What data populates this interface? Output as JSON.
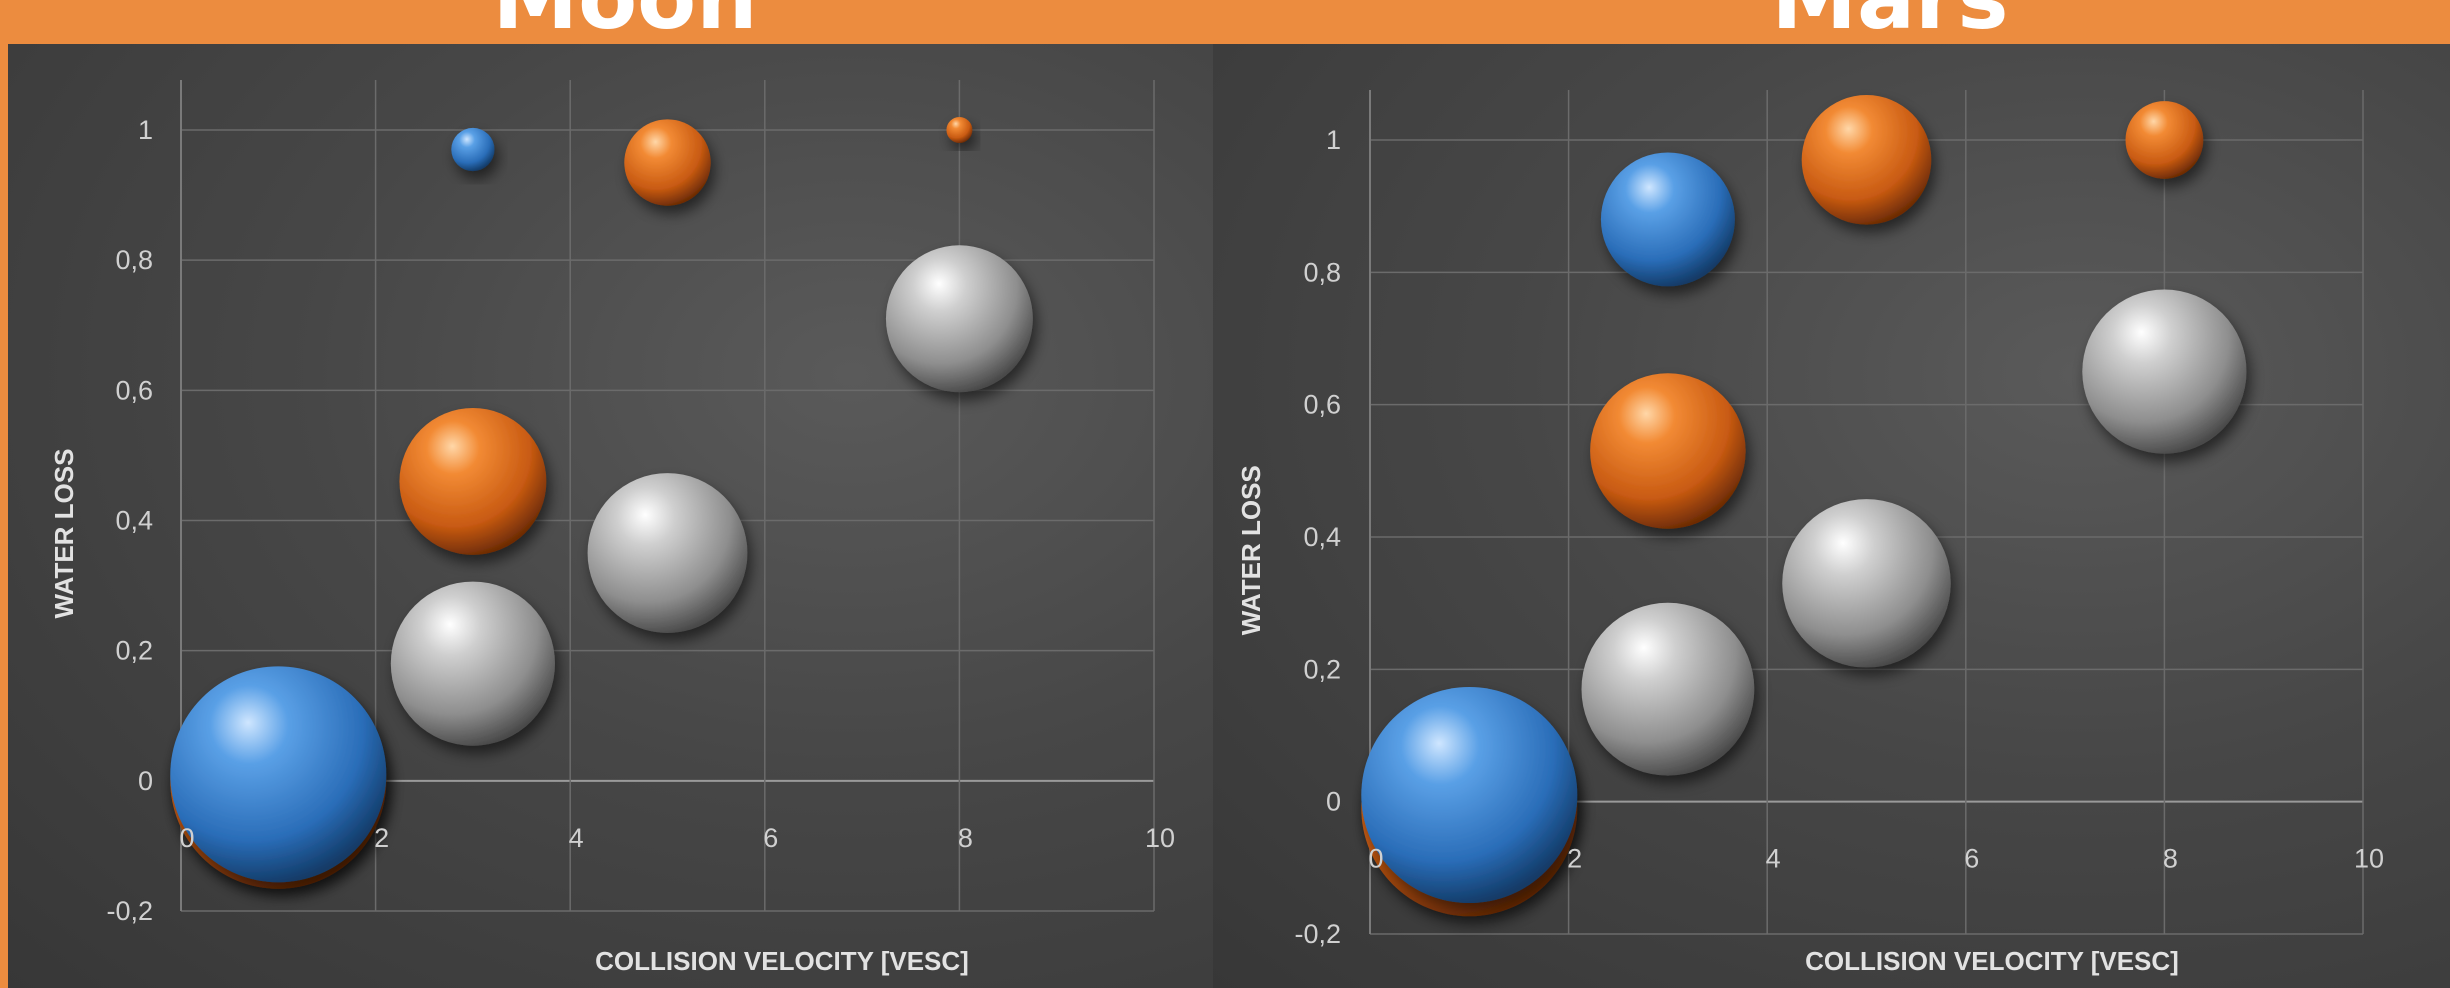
{
  "colors": {
    "background": "#ec8c3f",
    "panel": "#474747",
    "blue": "#4a90d9",
    "orange": "#e8782a",
    "silver": "#c9c9c9"
  },
  "titles": [
    "Moon",
    "Mars"
  ],
  "chart_data": [
    {
      "type": "scatter",
      "title": "Moon",
      "xlabel": "COLLISION VELOCITY [VESC]",
      "ylabel": "WATER LOSS",
      "xlim": [
        0,
        10
      ],
      "ylim": [
        -0.2,
        1
      ],
      "xticks": [
        "0",
        "2",
        "4",
        "6",
        "8",
        "10"
      ],
      "yticks": [
        "-0,2",
        "0",
        "0,2",
        "0,4",
        "0,6",
        "0,8",
        "1"
      ],
      "grid": true,
      "points": [
        {
          "x": 1,
          "y": 0.0,
          "size": 1.0,
          "color": "orange"
        },
        {
          "x": 1,
          "y": 0.01,
          "size": 1.0,
          "color": "blue"
        },
        {
          "x": 3,
          "y": 0.18,
          "size": 0.76,
          "color": "silver"
        },
        {
          "x": 3,
          "y": 0.46,
          "size": 0.68,
          "color": "orange"
        },
        {
          "x": 3,
          "y": 0.97,
          "size": 0.2,
          "color": "blue"
        },
        {
          "x": 5,
          "y": 0.35,
          "size": 0.74,
          "color": "silver"
        },
        {
          "x": 5,
          "y": 0.95,
          "size": 0.4,
          "color": "orange"
        },
        {
          "x": 8,
          "y": 0.71,
          "size": 0.68,
          "color": "silver"
        },
        {
          "x": 8,
          "y": 1.0,
          "size": 0.12,
          "color": "orange"
        }
      ]
    },
    {
      "type": "scatter",
      "title": "Mars",
      "xlabel": "COLLISION VELOCITY [VESC]",
      "ylabel": "WATER LOSS",
      "xlim": [
        0,
        10
      ],
      "ylim": [
        -0.2,
        1
      ],
      "xticks": [
        "0",
        "2",
        "4",
        "6",
        "8",
        "10"
      ],
      "yticks": [
        "-0,2",
        "0",
        "0,2",
        "0,4",
        "0,6",
        "0,8",
        "1"
      ],
      "grid": true,
      "points": [
        {
          "x": 1,
          "y": -0.01,
          "size": 1.0,
          "color": "orange"
        },
        {
          "x": 1,
          "y": 0.01,
          "size": 1.0,
          "color": "blue"
        },
        {
          "x": 3,
          "y": 0.17,
          "size": 0.8,
          "color": "silver"
        },
        {
          "x": 3,
          "y": 0.53,
          "size": 0.72,
          "color": "orange"
        },
        {
          "x": 3,
          "y": 0.88,
          "size": 0.62,
          "color": "blue"
        },
        {
          "x": 5,
          "y": 0.33,
          "size": 0.78,
          "color": "silver"
        },
        {
          "x": 5,
          "y": 0.97,
          "size": 0.6,
          "color": "orange"
        },
        {
          "x": 8,
          "y": 0.65,
          "size": 0.76,
          "color": "silver"
        },
        {
          "x": 8,
          "y": 1.0,
          "size": 0.36,
          "color": "orange"
        }
      ]
    }
  ]
}
